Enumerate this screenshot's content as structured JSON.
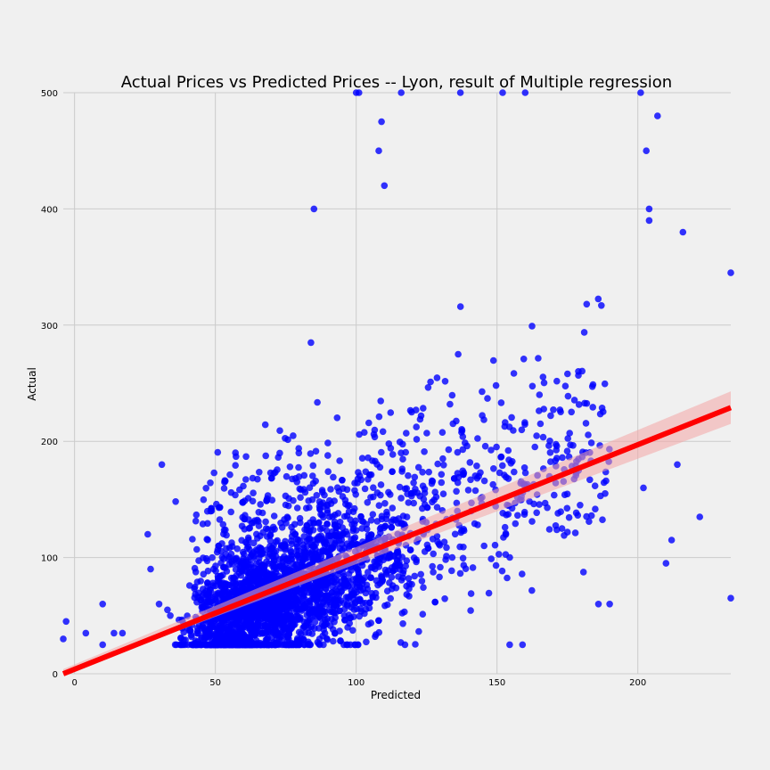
{
  "chart_data": {
    "type": "scatter",
    "title": "Actual Prices vs Predicted Prices -- Lyon, result of Multiple regression",
    "xlabel": "Predicted",
    "ylabel": "Actual",
    "xlim": [
      -4,
      233
    ],
    "ylim": [
      0,
      500
    ],
    "xticks": [
      0,
      50,
      100,
      150,
      200
    ],
    "yticks": [
      0,
      100,
      200,
      300,
      400,
      500
    ],
    "grid": true,
    "background": "#f0f0f0",
    "point_color": "#0000ff",
    "line_color": "#ff0000",
    "band_color": "#f4a6a6",
    "regression": {
      "x_start": -4,
      "y_start": 0,
      "x_end": 233,
      "y_end": 229,
      "ci_halfwidth_start": 4,
      "ci_halfwidth_end": 14
    },
    "points_sample": [
      [
        -4,
        30
      ],
      [
        -3,
        45
      ],
      [
        4,
        35
      ],
      [
        10,
        60
      ],
      [
        10,
        25
      ],
      [
        14,
        35
      ],
      [
        17,
        35
      ],
      [
        26,
        120
      ],
      [
        27,
        90
      ],
      [
        31,
        180
      ],
      [
        30,
        60
      ],
      [
        33,
        55
      ],
      [
        34,
        50
      ],
      [
        85,
        400
      ],
      [
        109,
        475
      ],
      [
        108,
        450
      ],
      [
        110,
        420
      ],
      [
        100,
        500
      ],
      [
        101,
        500
      ],
      [
        116,
        500
      ],
      [
        137,
        500
      ],
      [
        152,
        500
      ],
      [
        160,
        500
      ],
      [
        201,
        500
      ],
      [
        203,
        450
      ],
      [
        207,
        480
      ],
      [
        204,
        400
      ],
      [
        204,
        390
      ],
      [
        216,
        380
      ],
      [
        233,
        345
      ],
      [
        210,
        95
      ],
      [
        212,
        115
      ],
      [
        222,
        135
      ],
      [
        233,
        65
      ],
      [
        214,
        180
      ],
      [
        202,
        160
      ],
      [
        190,
        60
      ],
      [
        186,
        60
      ]
    ]
  }
}
